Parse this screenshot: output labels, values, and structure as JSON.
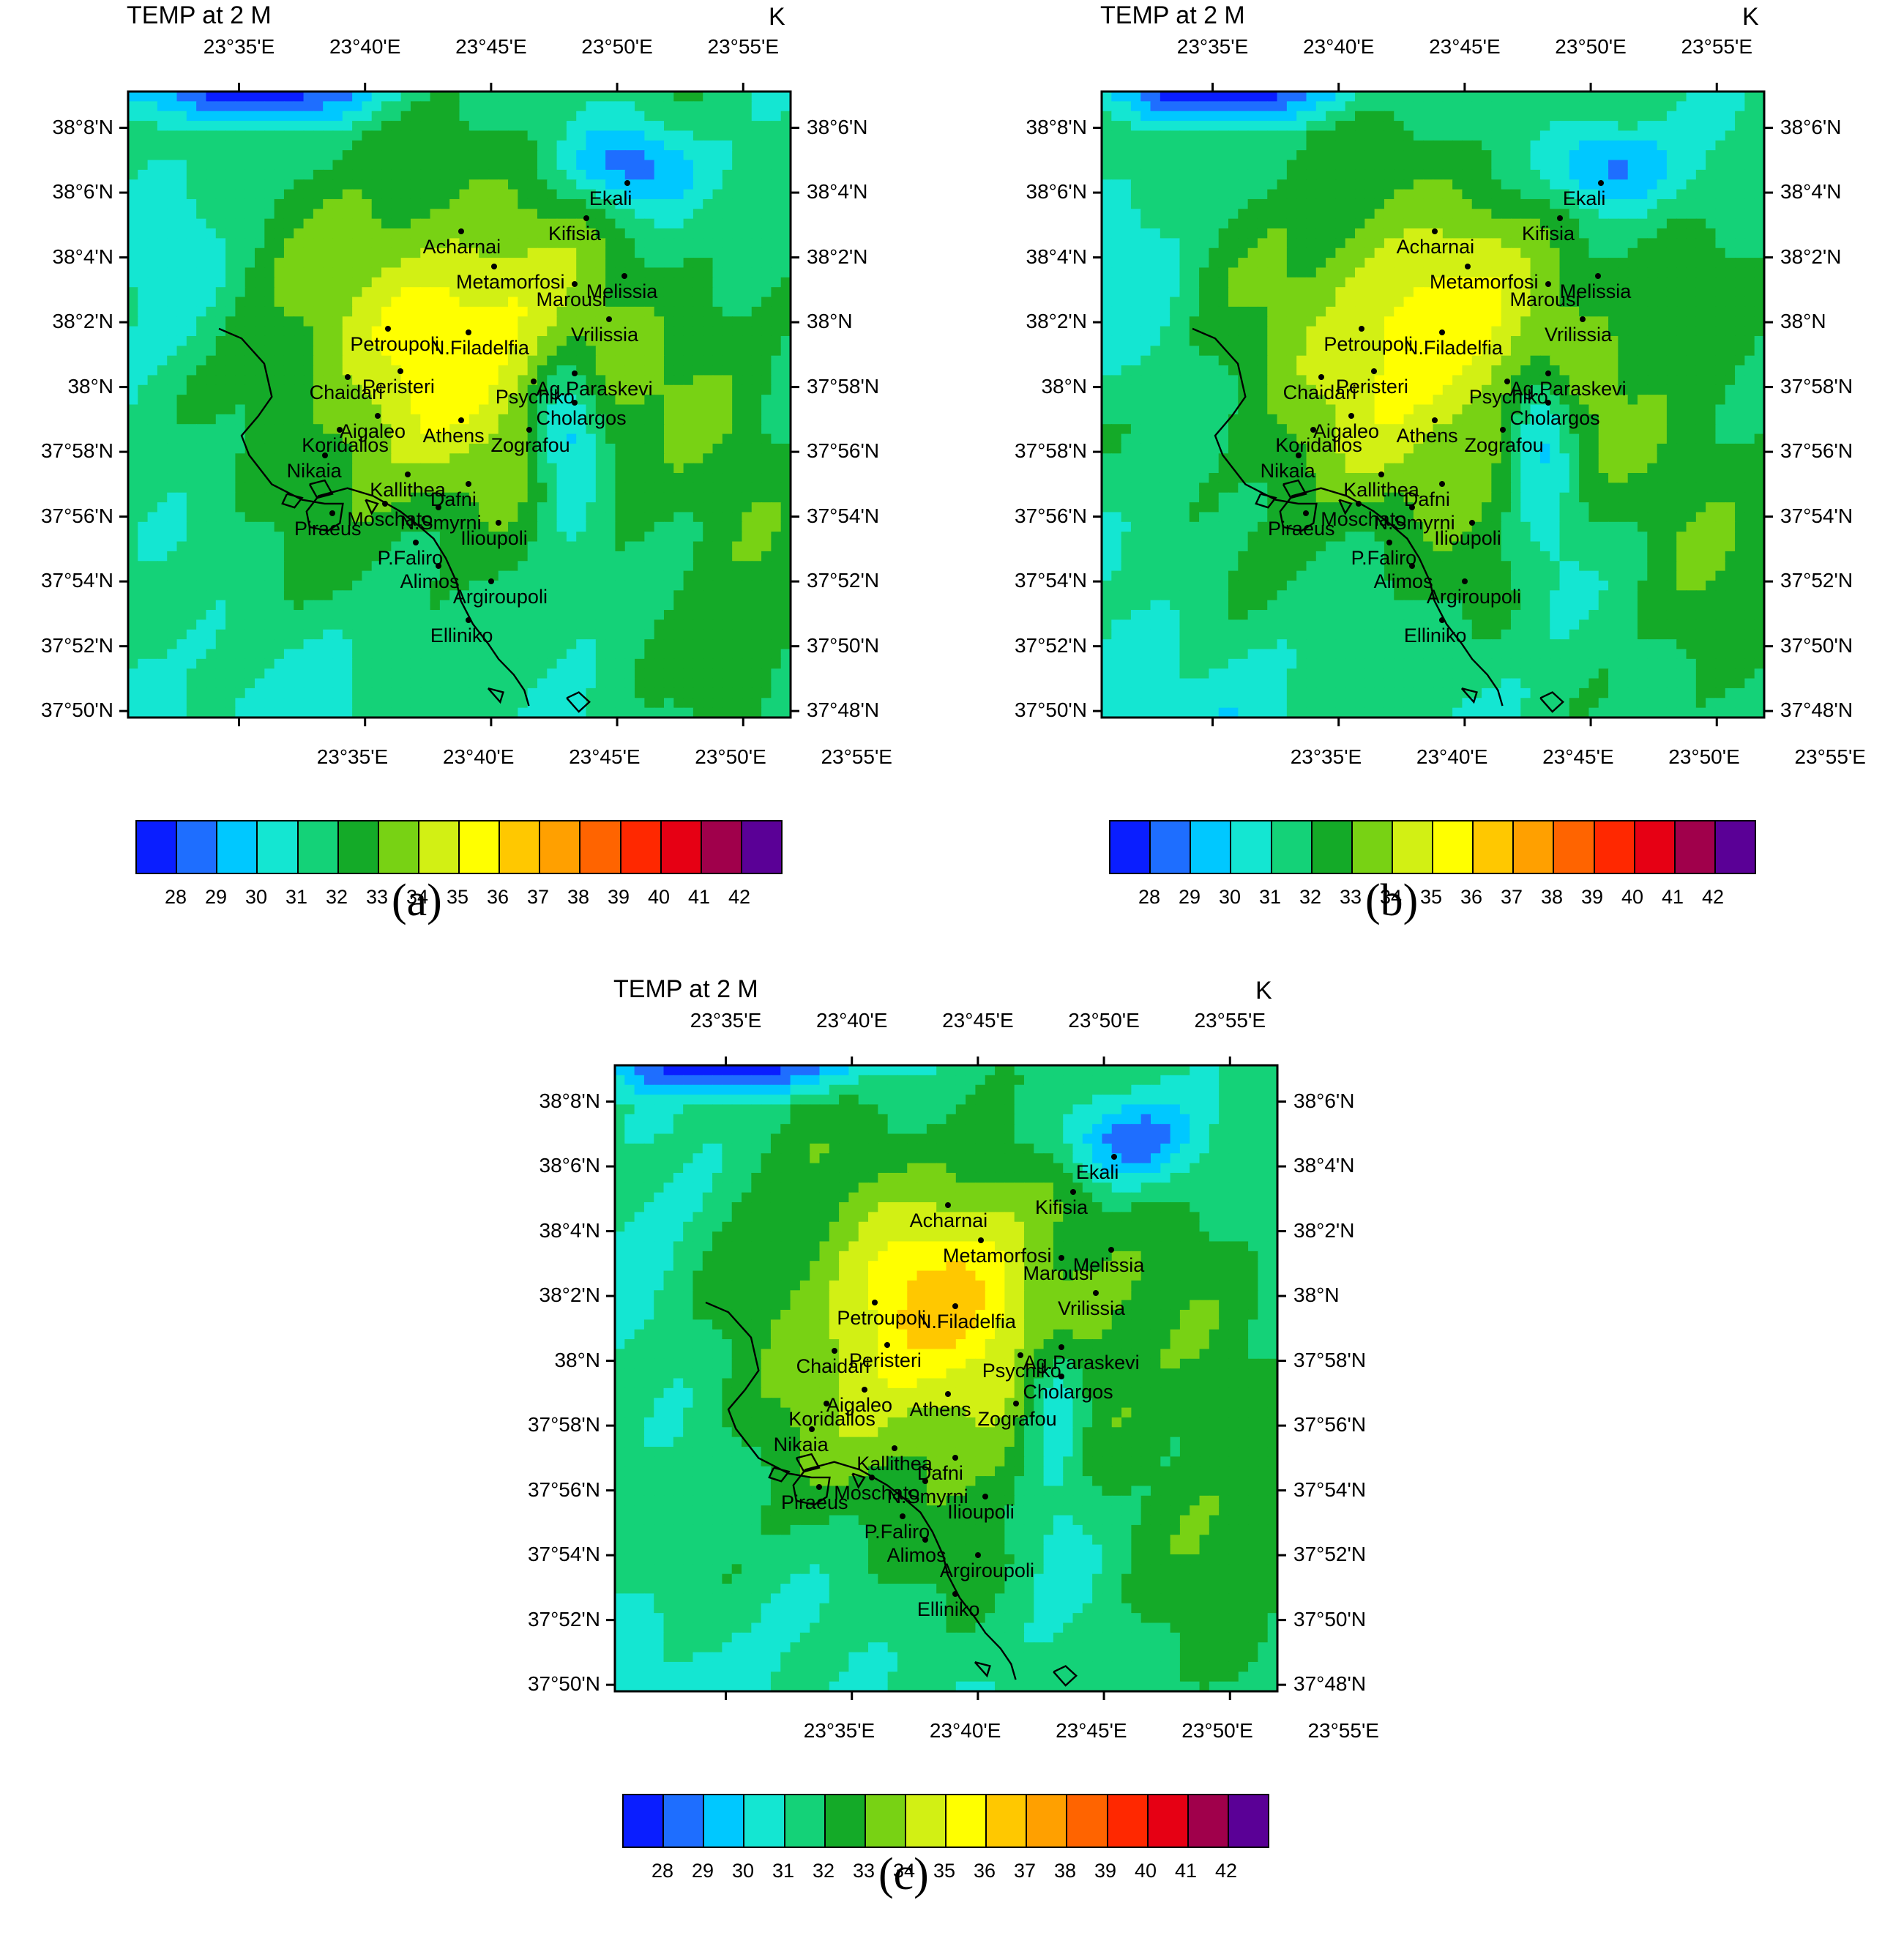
{
  "panels": [
    {
      "id": "a",
      "label": "(a)",
      "title": "TEMP at 2 M",
      "unit": "K",
      "variant": 0
    },
    {
      "id": "b",
      "label": "(b)",
      "title": "TEMP at 2 M",
      "unit": "K",
      "variant": 1
    },
    {
      "id": "c",
      "label": "(c)",
      "title": "TEMP at 2 M",
      "unit": "K",
      "variant": 2
    }
  ],
  "axes": {
    "lon_labels": [
      "23°35'E",
      "23°40'E",
      "23°45'E",
      "23°50'E",
      "23°55'E"
    ],
    "lat_labels_left": [
      "38°8'N",
      "38°6'N",
      "38°4'N",
      "38°2'N",
      "38°N",
      "37°58'N",
      "37°56'N",
      "37°54'N",
      "37°52'N",
      "37°50'N"
    ],
    "lat_labels_right": [
      "38°6'N",
      "38°4'N",
      "38°2'N",
      "38°N",
      "37°58'N",
      "37°56'N",
      "37°54'N",
      "37°52'N",
      "37°50'N",
      "37°48'N"
    ]
  },
  "colorbar": {
    "ticks": [
      "28",
      "29",
      "30",
      "31",
      "32",
      "33",
      "34",
      "35",
      "36",
      "37",
      "38",
      "39",
      "40",
      "41",
      "42"
    ],
    "colors": [
      "#0a1eff",
      "#1e6eff",
      "#00c8ff",
      "#14e6d2",
      "#14d278",
      "#14aa28",
      "#78d214",
      "#d2f014",
      "#ffff00",
      "#ffc800",
      "#ffa000",
      "#ff6400",
      "#ff2800",
      "#e60014",
      "#a0004b",
      "#5a0096"
    ]
  },
  "cities": [
    {
      "name": "Ekali",
      "lon": 23.84,
      "lat": 38.105
    },
    {
      "name": "Kifisia",
      "lon": 23.813,
      "lat": 38.087
    },
    {
      "name": "Acharnai",
      "lon": 23.73,
      "lat": 38.08
    },
    {
      "name": "Melissia",
      "lon": 23.838,
      "lat": 38.057
    },
    {
      "name": "Metamorfosi",
      "lon": 23.752,
      "lat": 38.062
    },
    {
      "name": "Marousi",
      "lon": 23.805,
      "lat": 38.053
    },
    {
      "name": "Vrilissia",
      "lon": 23.828,
      "lat": 38.035
    },
    {
      "name": "Petroupoli",
      "lon": 23.682,
      "lat": 38.03
    },
    {
      "name": "N.Filadelfia",
      "lon": 23.735,
      "lat": 38.028
    },
    {
      "name": "Ag.Paraskevi",
      "lon": 23.805,
      "lat": 38.007
    },
    {
      "name": "Chaidari",
      "lon": 23.655,
      "lat": 38.005
    },
    {
      "name": "Peristeri",
      "lon": 23.69,
      "lat": 38.008
    },
    {
      "name": "Psychiko",
      "lon": 23.778,
      "lat": 38.003
    },
    {
      "name": "Cholargos",
      "lon": 23.805,
      "lat": 37.992
    },
    {
      "name": "Aigaleo",
      "lon": 23.675,
      "lat": 37.985
    },
    {
      "name": "Athens",
      "lon": 23.73,
      "lat": 37.983
    },
    {
      "name": "Zografou",
      "lon": 23.775,
      "lat": 37.978
    },
    {
      "name": "Koridallos",
      "lon": 23.65,
      "lat": 37.978
    },
    {
      "name": "Nikaia",
      "lon": 23.64,
      "lat": 37.965
    },
    {
      "name": "Kallithea",
      "lon": 23.695,
      "lat": 37.955
    },
    {
      "name": "Dafni",
      "lon": 23.735,
      "lat": 37.95
    },
    {
      "name": "Moschato",
      "lon": 23.68,
      "lat": 37.94
    },
    {
      "name": "N.Smyrni",
      "lon": 23.715,
      "lat": 37.938
    },
    {
      "name": "Piraeus",
      "lon": 23.645,
      "lat": 37.935
    },
    {
      "name": "Ilioupoli",
      "lon": 23.755,
      "lat": 37.93
    },
    {
      "name": "P.Faliro",
      "lon": 23.7,
      "lat": 37.92
    },
    {
      "name": "Alimos",
      "lon": 23.715,
      "lat": 37.908
    },
    {
      "name": "Argiroupoli",
      "lon": 23.75,
      "lat": 37.9
    },
    {
      "name": "Elliniko",
      "lon": 23.735,
      "lat": 37.88
    }
  ]
}
